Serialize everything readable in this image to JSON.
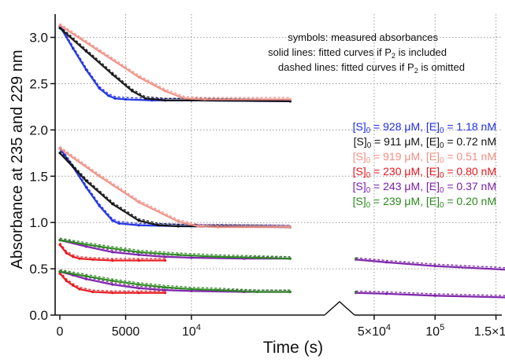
{
  "chart_data": {
    "type": "line",
    "title": "",
    "xlabel": "Time (s)",
    "ylabel": "Absorbance at 235 and 229 nm",
    "ylim": [
      0,
      3.2
    ],
    "yticks": [
      0.0,
      0.5,
      1.0,
      1.5,
      2.0,
      2.5,
      3.0
    ],
    "ytick_labels": [
      "0.0",
      "0.5",
      "1.0",
      "1.5",
      "2.0",
      "2.5",
      "3.0"
    ],
    "x_segments": [
      {
        "range": [
          0,
          20000
        ],
        "ticks": [
          {
            "value": 0,
            "label": "0"
          },
          {
            "value": 5000,
            "label": "5000"
          },
          {
            "value": 10000,
            "label": "10^4"
          }
        ]
      },
      {
        "range": [
          30000,
          160000
        ],
        "ticks": [
          {
            "value": 50000,
            "label": "5×10^4"
          },
          {
            "value": 100000,
            "label": "10^5"
          },
          {
            "value": 150000,
            "label": "1.5×10^5"
          }
        ]
      }
    ],
    "axis_break": "between 1.7×10^4 and 3×10^4",
    "grid": true,
    "notes": [
      {
        "parts": [
          "symbols: measured absorbances"
        ]
      },
      {
        "parts": [
          "solid lines: fitted curves if P",
          "2",
          " is included"
        ]
      },
      {
        "parts": [
          "dashed lines: fitted curves if P",
          "2",
          " is omitted"
        ]
      }
    ],
    "legend_position": "right",
    "series": [
      {
        "name": "[S]0 = 928 μM, [E]0 = 1.18 nM",
        "label_parts": [
          "[S]",
          "0",
          " = 928 μM, [E]",
          "0",
          " = 1.18 nM"
        ],
        "color": "#1f2fe0",
        "x": [
          0,
          1000,
          2000,
          3000,
          3700,
          4200,
          5000,
          7000,
          10000,
          17500
        ],
        "y": [
          3.12,
          2.88,
          2.65,
          2.45,
          2.37,
          2.34,
          2.33,
          2.32,
          2.32,
          2.31
        ]
      },
      {
        "name": "[S]0 = 911 μM, [E]0 = 0.72 nM",
        "label_parts": [
          "[S]",
          "0",
          " = 911 μM, [E]",
          "0",
          " = 0.72 nM"
        ],
        "color": "#111111",
        "x": [
          0,
          2000,
          4000,
          5500,
          6500,
          8000,
          10000,
          17500
        ],
        "y": [
          3.1,
          2.85,
          2.6,
          2.42,
          2.34,
          2.32,
          2.32,
          2.31
        ]
      },
      {
        "name": "[S]0 = 919 μM, [E]0 = 0.51 nM",
        "label_parts": [
          "[S]",
          "0",
          " = 919 μM, [E]",
          "0",
          " = 0.51 nM"
        ],
        "color": "#f08f84",
        "x": [
          0,
          3000,
          6000,
          8000,
          9500,
          11000,
          17500
        ],
        "y": [
          3.13,
          2.85,
          2.57,
          2.42,
          2.34,
          2.33,
          2.33
        ]
      },
      {
        "name": "[S]0 = 230 μM, [E]0 = 0.80 nM",
        "label_parts": [
          "[S]",
          "0",
          " = 230 μM, [E]",
          "0",
          " = 0.80 nM"
        ],
        "color": "#e8141b",
        "x": [
          0,
          500,
          1000,
          1500,
          2500,
          4000,
          6000,
          8000
        ],
        "y": [
          0.45,
          0.37,
          0.32,
          0.28,
          0.25,
          0.24,
          0.24,
          0.24
        ]
      },
      {
        "name": "[S]0 = 243 μM, [E]0 = 0.37 nM",
        "label_parts": [
          "[S]",
          "0",
          " = 243 μM, [E]",
          "0",
          " = 0.37 nM"
        ],
        "color": "#7a1fa8",
        "x": [
          0,
          1000,
          2000,
          4000,
          6000,
          8000,
          10000,
          14000,
          17500,
          35000,
          60000,
          100000,
          160000
        ],
        "y": [
          0.47,
          0.43,
          0.39,
          0.33,
          0.29,
          0.27,
          0.26,
          0.25,
          0.25,
          0.24,
          0.23,
          0.21,
          0.19
        ]
      },
      {
        "name": "[S]0 = 239 μM, [E]0 = 0.20 nM",
        "label_parts": [
          "[S]",
          "0",
          " = 239 μM, [E]",
          "0",
          " = 0.20 nM"
        ],
        "color": "#2a8a1c",
        "x": [
          0,
          2000,
          4000,
          6000,
          8000,
          10000,
          12000,
          15000,
          17500,
          35000
        ],
        "y": [
          0.47,
          0.42,
          0.37,
          0.33,
          0.3,
          0.28,
          0.27,
          0.25,
          0.25,
          0.25
        ]
      }
    ],
    "other_traces": [
      {
        "color": "#1f2fe0",
        "x": [
          0,
          1000,
          2000,
          3000,
          4000,
          4500,
          6000,
          9000,
          17500
        ],
        "y": [
          1.8,
          1.6,
          1.38,
          1.18,
          1.02,
          0.99,
          0.97,
          0.96,
          0.95
        ]
      },
      {
        "color": "#111111",
        "x": [
          0,
          2000,
          4000,
          6000,
          7500,
          9000,
          17500
        ],
        "y": [
          1.75,
          1.45,
          1.2,
          1.02,
          0.97,
          0.96,
          0.95
        ]
      },
      {
        "color": "#f08f84",
        "x": [
          0,
          3000,
          6000,
          9000,
          10500,
          12000,
          17500
        ],
        "y": [
          1.8,
          1.5,
          1.22,
          1.01,
          0.96,
          0.95,
          0.95
        ]
      },
      {
        "color": "#e8141b",
        "x": [
          0,
          500,
          1000,
          1500,
          2500,
          4000,
          6000,
          8000
        ],
        "y": [
          0.76,
          0.67,
          0.63,
          0.61,
          0.6,
          0.59,
          0.59,
          0.59
        ]
      },
      {
        "color": "#7a1fa8",
        "x": [
          0,
          2000,
          4000,
          6000,
          8000,
          10000,
          14000,
          17500,
          35000,
          60000,
          100000,
          160000
        ],
        "y": [
          0.81,
          0.74,
          0.68,
          0.65,
          0.63,
          0.62,
          0.61,
          0.61,
          0.6,
          0.57,
          0.53,
          0.49
        ]
      },
      {
        "color": "#2a8a1c",
        "x": [
          0,
          3000,
          6000,
          9000,
          12000,
          15000,
          17500,
          35000
        ],
        "y": [
          0.81,
          0.74,
          0.68,
          0.65,
          0.63,
          0.62,
          0.61,
          0.61
        ]
      }
    ]
  }
}
